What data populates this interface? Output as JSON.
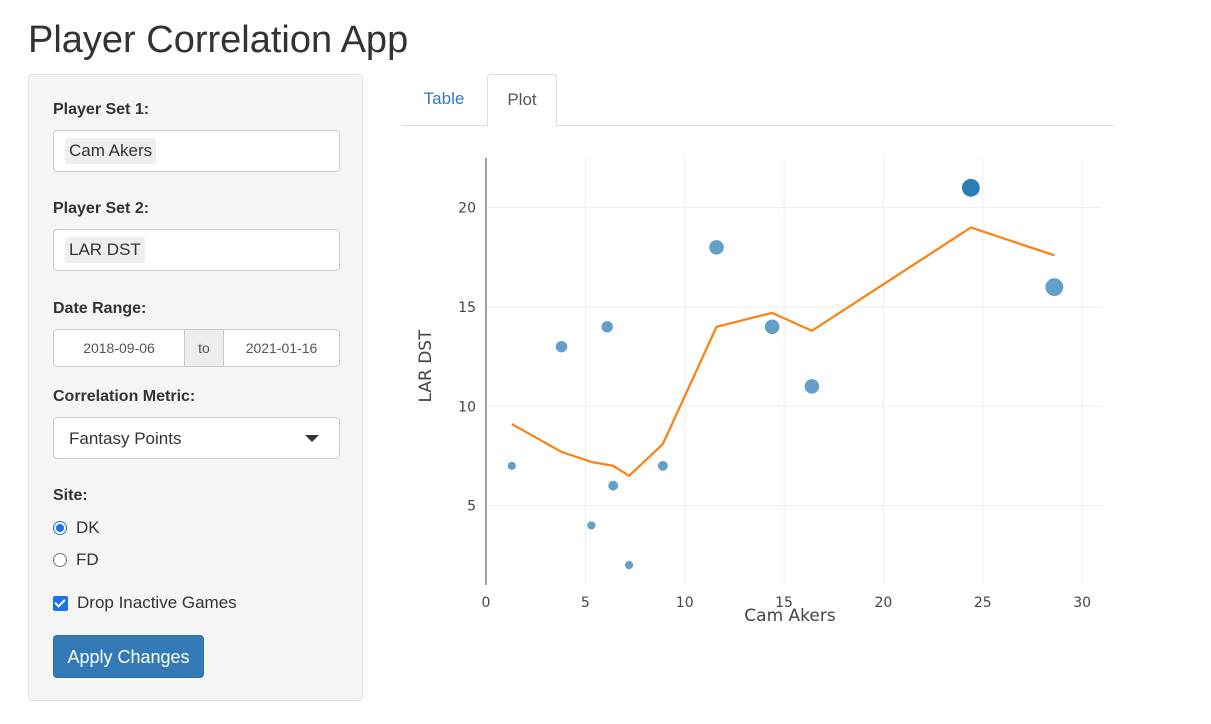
{
  "app": {
    "title": "Player Correlation App"
  },
  "sidebar": {
    "player_set_1": {
      "label": "Player Set 1:",
      "selected": "Cam Akers"
    },
    "player_set_2": {
      "label": "Player Set 2:",
      "selected": "LAR DST"
    },
    "date_range": {
      "label": "Date Range:",
      "start": "2018-09-06",
      "separator": "to",
      "end": "2021-01-16"
    },
    "correlation_metric": {
      "label": "Correlation Metric:",
      "selected": "Fantasy Points"
    },
    "site": {
      "label": "Site:",
      "options": [
        "DK",
        "FD"
      ],
      "selected": "DK"
    },
    "drop_inactive": {
      "label": "Drop Inactive Games",
      "checked": true
    },
    "apply_label": "Apply Changes"
  },
  "tabs": {
    "items": [
      "Table",
      "Plot"
    ],
    "active": "Plot"
  },
  "colors": {
    "points": "#1f77b4",
    "line": "#ff7f0e",
    "button": "#337ab7"
  },
  "chart_data": {
    "type": "scatter",
    "xlabel": "Cam Akers",
    "ylabel": "LAR DST",
    "xlim": [
      0,
      31
    ],
    "ylim": [
      1,
      22.5
    ],
    "xticks": [
      0,
      5,
      10,
      15,
      20,
      25,
      30
    ],
    "yticks": [
      5,
      10,
      15,
      20
    ],
    "grid": true,
    "points": [
      {
        "x": 1.3,
        "y": 7,
        "size": 1
      },
      {
        "x": 3.8,
        "y": 13,
        "size": 2
      },
      {
        "x": 5.3,
        "y": 4,
        "size": 1
      },
      {
        "x": 6.1,
        "y": 14,
        "size": 2
      },
      {
        "x": 6.4,
        "y": 6,
        "size": 1.5
      },
      {
        "x": 7.2,
        "y": 2,
        "size": 1
      },
      {
        "x": 8.9,
        "y": 7,
        "size": 1.5
      },
      {
        "x": 11.6,
        "y": 18,
        "size": 3
      },
      {
        "x": 14.4,
        "y": 14,
        "size": 3
      },
      {
        "x": 16.4,
        "y": 11,
        "size": 3
      },
      {
        "x": 24.4,
        "y": 21,
        "size": 4
      },
      {
        "x": 28.6,
        "y": 16,
        "size": 4
      }
    ],
    "trend": [
      {
        "x": 1.3,
        "y": 9.1
      },
      {
        "x": 3.8,
        "y": 7.7
      },
      {
        "x": 5.3,
        "y": 7.2
      },
      {
        "x": 6.4,
        "y": 7.0
      },
      {
        "x": 7.2,
        "y": 6.5
      },
      {
        "x": 8.9,
        "y": 8.1
      },
      {
        "x": 11.6,
        "y": 14.0
      },
      {
        "x": 14.4,
        "y": 14.7
      },
      {
        "x": 16.4,
        "y": 13.8
      },
      {
        "x": 24.4,
        "y": 19.0
      },
      {
        "x": 28.6,
        "y": 17.6
      }
    ]
  }
}
